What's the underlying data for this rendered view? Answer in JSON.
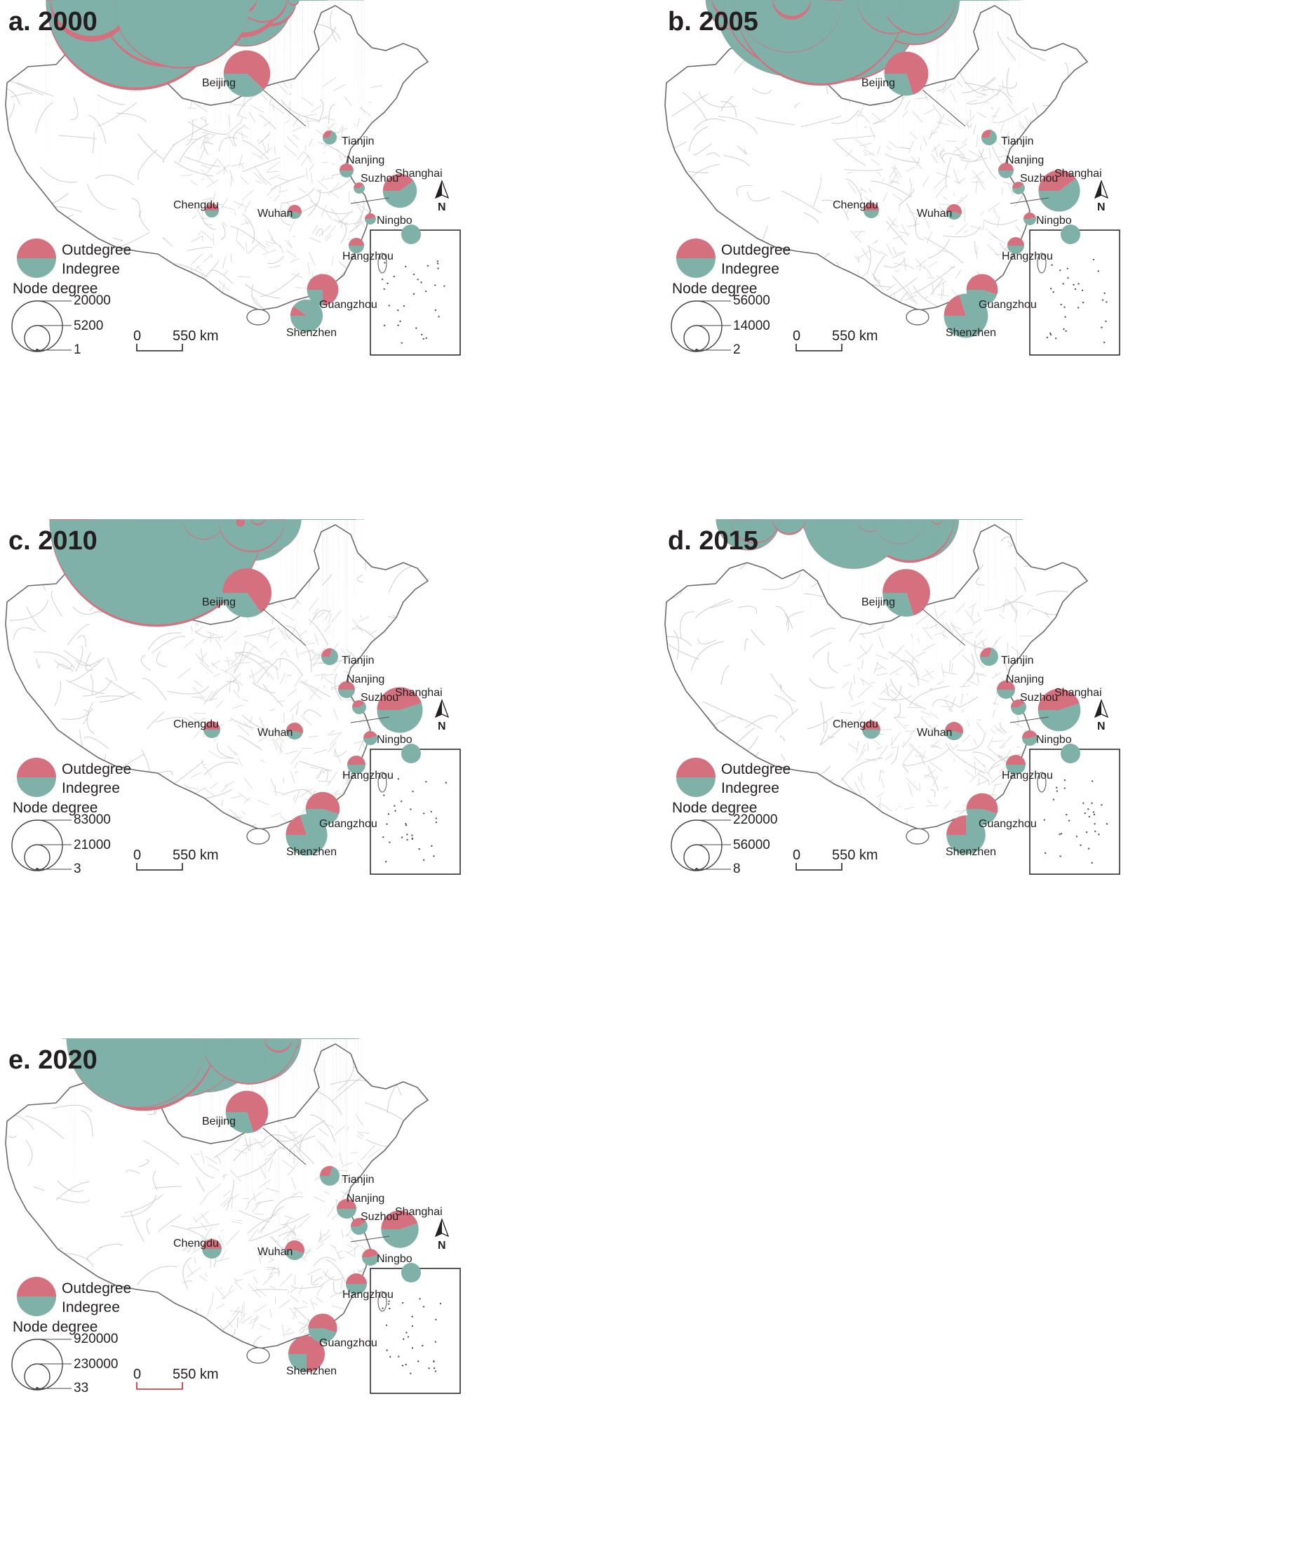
{
  "colors": {
    "outdegree": "#d5707e",
    "indegree": "#7fb1a9",
    "border": "#b5b5b5",
    "outline": "#6b6b6b"
  },
  "legend": {
    "outdegree": "Outdegree",
    "indegree": "Indegree",
    "node_degree": "Node degree"
  },
  "scale": {
    "zero": "0",
    "distance": "550 km"
  },
  "north": "N",
  "cities": [
    "Beijing",
    "Tianjin",
    "Nanjing",
    "Suzhou",
    "Shanghai",
    "Chengdu",
    "Wuhan",
    "Ningbo",
    "Hangzhou",
    "Guangzhou",
    "Shenzhen"
  ],
  "panels": [
    {
      "title": "a. 2000",
      "node_degree_ticks": [
        "20000",
        "5200",
        "1"
      ],
      "nodes": {
        "Beijing": {
          "degree_share": 0.7,
          "out_share": 0.62
        },
        "Shanghai": {
          "degree_share": 0.45,
          "out_share": 0.4
        },
        "Shenzhen": {
          "degree_share": 0.42,
          "out_share": 0.1
        },
        "Guangzhou": {
          "degree_share": 0.4,
          "out_share": 0.75
        }
      }
    },
    {
      "title": "b. 2005",
      "node_degree_ticks": [
        "56000",
        "14000",
        "2"
      ],
      "nodes": {
        "Beijing": {
          "degree_share": 0.65,
          "out_share": 0.7
        },
        "Shanghai": {
          "degree_share": 0.6,
          "out_share": 0.4
        },
        "Shenzhen": {
          "degree_share": 0.65,
          "out_share": 0.2
        },
        "Guangzhou": {
          "degree_share": 0.4,
          "out_share": 0.55
        }
      }
    },
    {
      "title": "c. 2010",
      "node_degree_ticks": [
        "83000",
        "21000",
        "3"
      ],
      "nodes": {
        "Beijing": {
          "degree_share": 0.75,
          "out_share": 0.65
        },
        "Shanghai": {
          "degree_share": 0.68,
          "out_share": 0.45
        },
        "Shenzhen": {
          "degree_share": 0.6,
          "out_share": 0.2
        },
        "Guangzhou": {
          "degree_share": 0.45,
          "out_share": 0.55
        }
      }
    },
    {
      "title": "d. 2015",
      "node_degree_ticks": [
        "220000",
        "56000",
        "8"
      ],
      "nodes": {
        "Beijing": {
          "degree_share": 0.72,
          "out_share": 0.7
        },
        "Shanghai": {
          "degree_share": 0.62,
          "out_share": 0.45
        },
        "Shenzhen": {
          "degree_share": 0.55,
          "out_share": 0.25
        },
        "Guangzhou": {
          "degree_share": 0.4,
          "out_share": 0.55
        }
      }
    },
    {
      "title": "e. 2020",
      "node_degree_ticks": [
        "920000",
        "230000",
        "33"
      ],
      "nodes": {
        "Beijing": {
          "degree_share": 0.62,
          "out_share": 0.7
        },
        "Shanghai": {
          "degree_share": 0.52,
          "out_share": 0.45
        },
        "Shenzhen": {
          "degree_share": 0.5,
          "out_share": 0.75
        },
        "Guangzhou": {
          "degree_share": 0.35,
          "out_share": 0.55
        }
      }
    }
  ]
}
